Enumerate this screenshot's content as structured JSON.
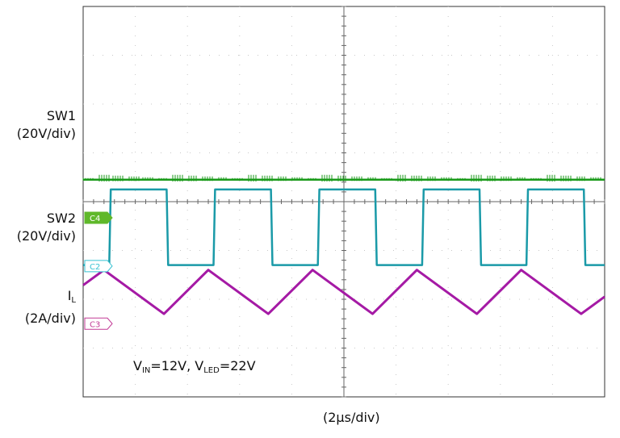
{
  "chart_data": {
    "type": "line",
    "title": "",
    "xlabel": "(2µs/div)",
    "x_divisions": 10,
    "y_divisions": 8,
    "grid": true,
    "conditions": {
      "vin_label": "V",
      "vin_sub": "IN",
      "vin_value": "=12V,",
      "vled_label": "V",
      "vled_sub": "LED",
      "vled_value": "=22V"
    },
    "channels": [
      {
        "id": "C4",
        "name": "SW1",
        "scale": "(20V/div)",
        "color": "#1a9a1a",
        "tag_color": "#5fb82a",
        "baseline_div": 3.55,
        "shape": "flat",
        "level_div": 0.0
      },
      {
        "id": "C2",
        "name": "SW2",
        "scale": "(20V/div)",
        "color": "#1a9aa8",
        "tag_color": "#36c2d2",
        "baseline_div": 5.3,
        "shape": "square",
        "high_div": 1.55,
        "low_div": 0.0,
        "edges_div": [
          0.5,
          1.6,
          2.5,
          3.6,
          4.5,
          5.6,
          6.5,
          7.6,
          8.5,
          9.6
        ],
        "start_level": "low"
      },
      {
        "id": "C3",
        "name": "I",
        "name_sub": "L",
        "scale": "(2A/div)",
        "color": "#a51aa5",
        "tag_color": "#c23a96",
        "baseline_div": 5.95,
        "shape": "triangle",
        "peak_div": 0.55,
        "valley_div": -0.35,
        "peaks_x_div": [
          0.4,
          2.4,
          4.4,
          6.4,
          8.4
        ],
        "valleys_x_div": [
          1.55,
          3.55,
          5.55,
          7.55,
          9.55
        ]
      }
    ]
  }
}
